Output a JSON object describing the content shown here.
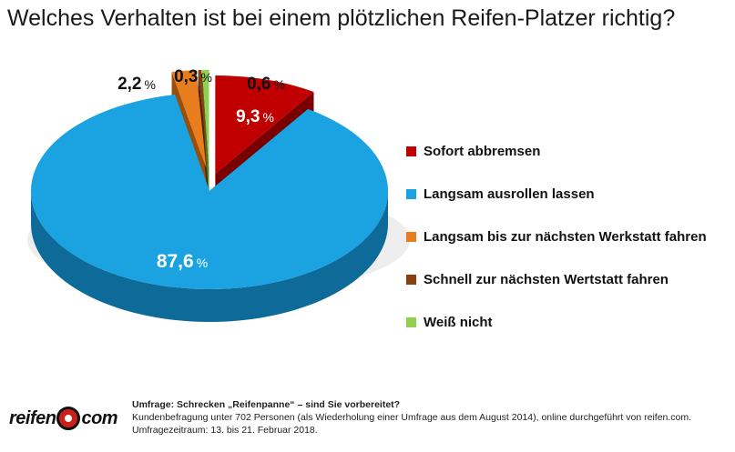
{
  "title": "Welches Verhalten ist bei einem plötzlichen Reifen-Platzer richtig?",
  "chart_data": {
    "type": "pie",
    "style": "3d-exploded",
    "title": "Welches Verhalten ist bei einem plötzlichen Reifen-Platzer richtig?",
    "unit": "%",
    "series": [
      {
        "name": "Sofort abbremsen",
        "value": 9.3,
        "label": "9,3",
        "color": "#c00000",
        "side_color": "#7a0000"
      },
      {
        "name": "Langsam ausrollen lassen",
        "value": 87.6,
        "label": "87,6",
        "color": "#1aa3e0",
        "side_color": "#0e6a99"
      },
      {
        "name": "Langsam bis zur nächsten Werkstatt fahren",
        "value": 2.2,
        "label": "2,2",
        "color": "#e87d1e",
        "side_color": "#9a4e0c"
      },
      {
        "name": "Schnell zur nächsten Wertstatt fahren",
        "value": 0.3,
        "label": "0,3",
        "color": "#8a3f10",
        "side_color": "#4e2208"
      },
      {
        "name": "Weiß nicht",
        "value": 0.6,
        "label": "0,6",
        "color": "#8fd14f",
        "side_color": "#4f8a25"
      }
    ],
    "legend_position": "right"
  },
  "footer": {
    "logo_left": "reifen",
    "logo_right": "com",
    "survey_title": "Umfrage: Schrecken „Reifenpanne“ – sind Sie vorbereitet?",
    "survey_desc": "Kundenbefragung unter 702 Personen (als Wiederholung einer Umfrage aus dem August 2014), online durchgeführt von reifen.com.",
    "survey_period": "Umfragezeitraum: 13. bis 21. Februar 2018."
  }
}
